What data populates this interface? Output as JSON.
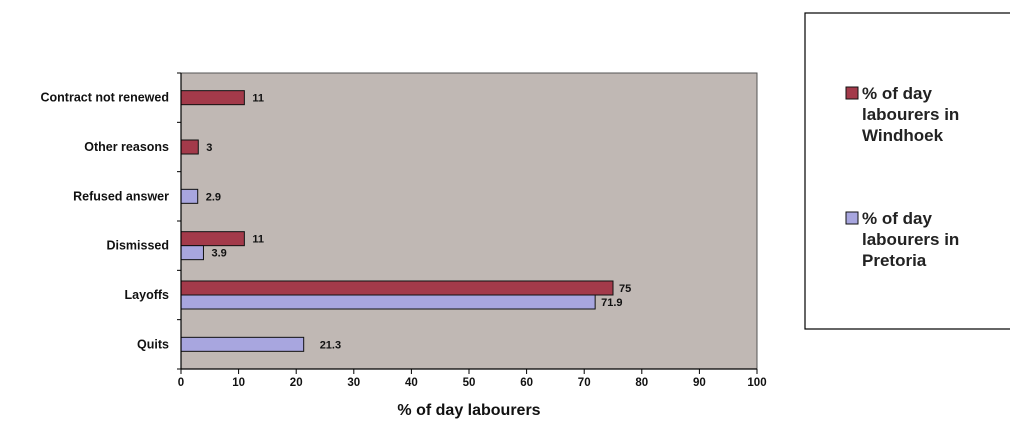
{
  "chart_data": {
    "type": "bar",
    "orientation": "horizontal",
    "title": "",
    "xlabel": "% of day labourers",
    "ylabel": "",
    "xlim": [
      0,
      100
    ],
    "xticks": [
      "0",
      "10",
      "20",
      "30",
      "40",
      "50",
      "60",
      "70",
      "80",
      "90",
      "100"
    ],
    "categories": [
      "Contract not renewed",
      "Other reasons",
      "Refused answer",
      "Dismissed",
      "Layoffs",
      "Quits"
    ],
    "series": [
      {
        "name_lines": [
          "% of day",
          "labourers in",
          "Windhoek"
        ],
        "color": "#a33a4a",
        "values": [
          11,
          3,
          null,
          11,
          75,
          null
        ],
        "labels": [
          "11",
          "3",
          "",
          "11",
          "75",
          ""
        ]
      },
      {
        "name_lines": [
          "% of day",
          "labourers in",
          "Pretoria"
        ],
        "color": "#a8a6df",
        "values": [
          null,
          null,
          2.9,
          3.9,
          71.9,
          21.3
        ],
        "labels": [
          "",
          "",
          "2.9",
          "3.9",
          "71.9",
          "21.3"
        ]
      }
    ],
    "plot_background": "#c0b8b4",
    "grid": false,
    "legend_position": "right"
  }
}
